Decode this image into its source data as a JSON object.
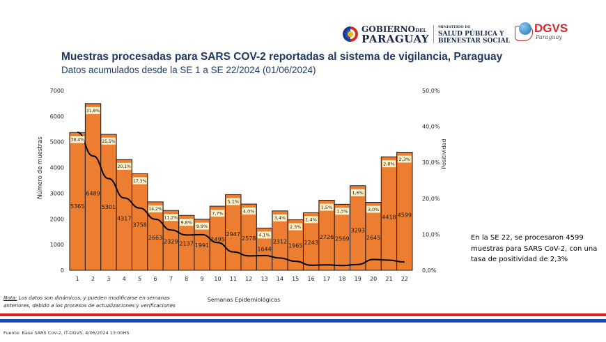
{
  "header": {
    "logo_gobierno_line1": "GOBIERNO",
    "logo_gobierno_del": "DEL",
    "logo_gobierno_line2": "PARAGUAY",
    "logo_ministerio_line0": "MINISTERIO DE",
    "logo_ministerio_line1": "SALUD PÚBLICA Y",
    "logo_ministerio_line2": "BIENESTAR SOCIAL",
    "logo_dgvs": "DGVS",
    "logo_dgvs_sub": "Paraguay"
  },
  "callout": "En la SE 22, se procesaron 4599 muestras para SARS CoV-2, con una tasa de positividad de 2,3%",
  "note": {
    "label": "Nota:",
    "text": " Los datos son dinámicos, y pueden modificarse en semanas anteriores, debido a los procesos de actualizaciones y verificaciones"
  },
  "source": "Fuente: Base SARS CoV-2, IT-DGVS, 4/06/2024 13:00HS",
  "colors": {
    "bar": "#ed7d31",
    "bar_border": "#1a1a1a",
    "line": "#000000",
    "label_bg": "#fff2cc",
    "title": "#1f3864"
  },
  "chart_data": {
    "type": "bar",
    "title": "Muestras procesadas para SARS COV-2 reportadas al sistema de vigilancia, Paraguay",
    "subtitle": "Datos acumulados desde la SE 1 a SE 22/2024 (01/06/2024)",
    "xlabel": "Semanas Epidemiológicas",
    "ylabel": "Número de muestras",
    "y2label": "Positividad",
    "categories": [
      "1",
      "2",
      "3",
      "4",
      "5",
      "6",
      "7",
      "8",
      "9",
      "10",
      "11",
      "12",
      "13",
      "14",
      "15",
      "16",
      "17",
      "18",
      "19",
      "20",
      "21",
      "22"
    ],
    "ylim": [
      0,
      7000
    ],
    "yticks": [
      "0",
      "1000",
      "2000",
      "3000",
      "4000",
      "5000",
      "6000",
      "7000"
    ],
    "y2lim": [
      0,
      50
    ],
    "y2ticks": [
      "0,0%",
      "10,0%",
      "20,0%",
      "30,0%",
      "40,0%",
      "50,0%"
    ],
    "series": [
      {
        "name": "Número de muestras",
        "type": "bar",
        "axis": "left",
        "values": [
          5365,
          6489,
          5301,
          4317,
          3758,
          2663,
          2329,
          2137,
          1991,
          2495,
          2947,
          2578,
          1644,
          2312,
          1965,
          2243,
          2726,
          2569,
          3293,
          2645,
          4418,
          4599
        ],
        "labels": [
          "5365",
          "6489",
          "5301",
          "4317",
          "3758",
          "2663",
          "2329",
          "2137",
          "1991",
          "2495",
          "2947",
          "2578",
          "1644",
          "2312",
          "1965",
          "2243",
          "2726",
          "2569",
          "3293",
          "2645",
          "4418",
          "4599"
        ]
      },
      {
        "name": "Positividad",
        "type": "line",
        "axis": "right",
        "values": [
          38.4,
          31.8,
          25.5,
          20.1,
          17.3,
          14.2,
          11.2,
          9.8,
          9.9,
          7.7,
          5.1,
          4.0,
          4.1,
          3.4,
          2.5,
          1.4,
          1.5,
          1.3,
          1.6,
          3.0,
          2.8,
          2.3
        ],
        "labels": [
          "38,4%",
          "31,8%",
          "25,5%",
          "20,1%",
          "17,3%",
          "14,2%",
          "11,2%",
          "9,8%",
          "9,9%",
          "7,7%",
          "5,1%",
          "4,0%",
          "4,1%",
          "3,4%",
          "2,5%",
          "1,4%",
          "1,5%",
          "1,3%",
          "1,6%",
          "3,0%",
          "2,8%",
          "2,3%"
        ]
      }
    ],
    "grid": false,
    "legend": "none"
  }
}
